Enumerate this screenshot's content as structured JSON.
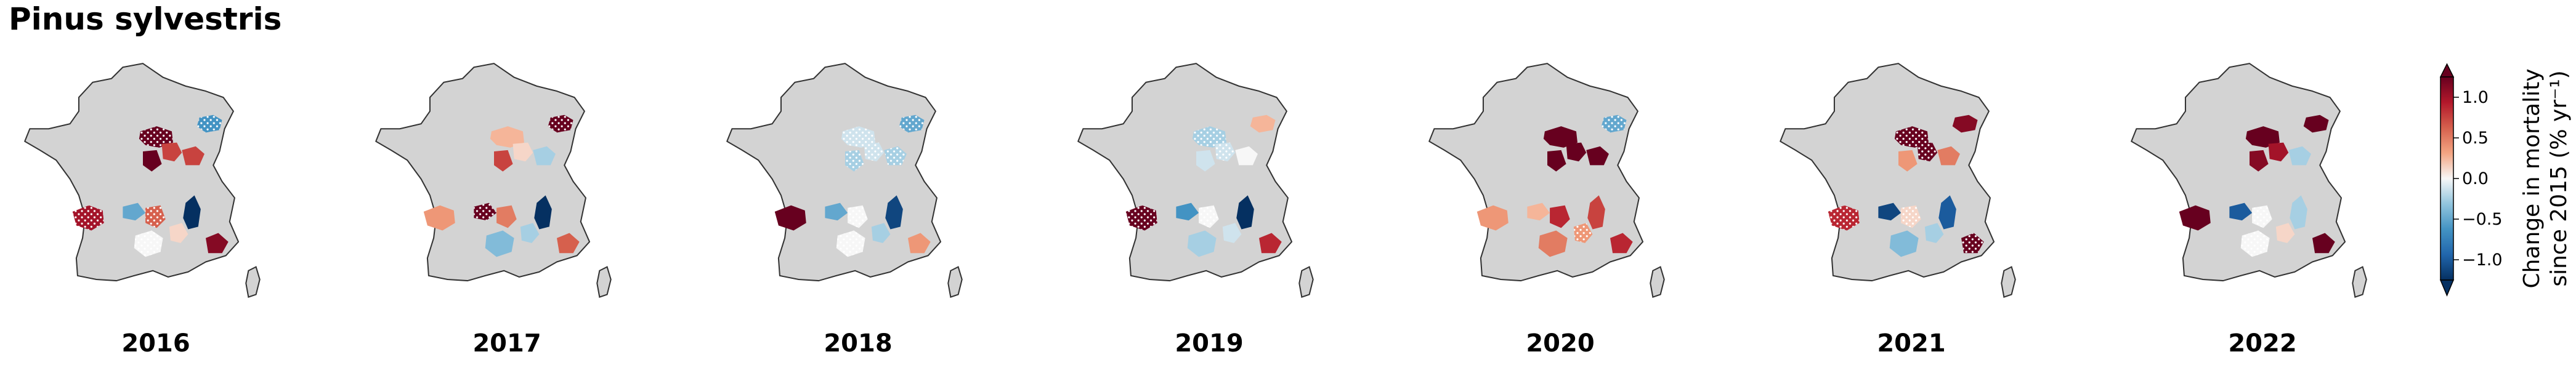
{
  "title": "Pinus sylvestris",
  "panels": [
    {
      "year": "2016",
      "regions": [
        {
          "id": "north-east",
          "value": -0.5,
          "hatched": true
        },
        {
          "id": "centre-north",
          "value": 1.3,
          "hatched": true
        },
        {
          "id": "centre-spot",
          "value": 1.4,
          "hatched": false
        },
        {
          "id": "centre",
          "value": 0.6,
          "hatched": false
        },
        {
          "id": "centre-east",
          "value": 0.6,
          "hatched": false
        },
        {
          "id": "south-west",
          "value": 0.8,
          "hatched": true
        },
        {
          "id": "massif-central",
          "value": -0.4,
          "hatched": false
        },
        {
          "id": "massif-south",
          "value": 0.5,
          "hatched": true
        },
        {
          "id": "south-centre",
          "value": 0.0,
          "hatched": true
        },
        {
          "id": "alps",
          "value": -1.3,
          "hatched": false
        },
        {
          "id": "south-east",
          "value": 0.9,
          "hatched": false
        },
        {
          "id": "pyrenees-east",
          "value": 0.1,
          "hatched": false
        }
      ]
    },
    {
      "year": "2017",
      "regions": [
        {
          "id": "north-east",
          "value": 1.4,
          "hatched": true
        },
        {
          "id": "centre-north",
          "value": 0.2,
          "hatched": false
        },
        {
          "id": "centre-spot",
          "value": 0.6,
          "hatched": false
        },
        {
          "id": "centre",
          "value": 0.1,
          "hatched": false
        },
        {
          "id": "centre-east",
          "value": -0.2,
          "hatched": false
        },
        {
          "id": "south-west",
          "value": 0.3,
          "hatched": false
        },
        {
          "id": "massif-central",
          "value": 1.2,
          "hatched": true
        },
        {
          "id": "massif-south",
          "value": 0.4,
          "hatched": false
        },
        {
          "id": "south-centre",
          "value": -0.3,
          "hatched": false
        },
        {
          "id": "alps",
          "value": -1.4,
          "hatched": false
        },
        {
          "id": "south-east",
          "value": 0.5,
          "hatched": false
        },
        {
          "id": "pyrenees-east",
          "value": -0.2,
          "hatched": false
        }
      ]
    },
    {
      "year": "2018",
      "regions": [
        {
          "id": "north-east",
          "value": -0.4,
          "hatched": true
        },
        {
          "id": "centre-north",
          "value": -0.1,
          "hatched": true
        },
        {
          "id": "centre-spot",
          "value": -0.2,
          "hatched": true
        },
        {
          "id": "centre",
          "value": -0.1,
          "hatched": true
        },
        {
          "id": "centre-east",
          "value": -0.2,
          "hatched": true
        },
        {
          "id": "south-west",
          "value": 1.3,
          "hatched": false
        },
        {
          "id": "massif-central",
          "value": -0.4,
          "hatched": false
        },
        {
          "id": "massif-south",
          "value": 0.0,
          "hatched": true
        },
        {
          "id": "south-centre",
          "value": 0.0,
          "hatched": true
        },
        {
          "id": "alps",
          "value": -0.9,
          "hatched": false
        },
        {
          "id": "south-east",
          "value": 0.3,
          "hatched": false
        },
        {
          "id": "pyrenees-east",
          "value": -0.2,
          "hatched": false
        }
      ]
    },
    {
      "year": "2019",
      "regions": [
        {
          "id": "north-east",
          "value": 0.2,
          "hatched": false
        },
        {
          "id": "centre-north",
          "value": -0.2,
          "hatched": true
        },
        {
          "id": "centre-spot",
          "value": -0.1,
          "hatched": false
        },
        {
          "id": "centre",
          "value": -0.1,
          "hatched": true
        },
        {
          "id": "centre-east",
          "value": 0.0,
          "hatched": false
        },
        {
          "id": "south-west",
          "value": 1.4,
          "hatched": true
        },
        {
          "id": "massif-central",
          "value": -0.5,
          "hatched": false
        },
        {
          "id": "massif-south",
          "value": 0.0,
          "hatched": true
        },
        {
          "id": "south-centre",
          "value": -0.2,
          "hatched": false
        },
        {
          "id": "alps",
          "value": -1.0,
          "hatched": false
        },
        {
          "id": "south-east",
          "value": 0.7,
          "hatched": false
        },
        {
          "id": "pyrenees-east",
          "value": -0.1,
          "hatched": false
        }
      ]
    },
    {
      "year": "2020",
      "regions": [
        {
          "id": "north-east",
          "value": -0.4,
          "hatched": true
        },
        {
          "id": "centre-north",
          "value": 1.5,
          "hatched": false
        },
        {
          "id": "centre-spot",
          "value": 1.5,
          "hatched": false
        },
        {
          "id": "centre",
          "value": 1.4,
          "hatched": false
        },
        {
          "id": "centre-east",
          "value": 1.3,
          "hatched": false
        },
        {
          "id": "south-west",
          "value": 0.3,
          "hatched": false
        },
        {
          "id": "massif-central",
          "value": 0.2,
          "hatched": false
        },
        {
          "id": "massif-south",
          "value": 0.7,
          "hatched": false
        },
        {
          "id": "south-centre",
          "value": 0.4,
          "hatched": false
        },
        {
          "id": "alps",
          "value": 0.6,
          "hatched": false
        },
        {
          "id": "south-east",
          "value": 0.7,
          "hatched": false
        },
        {
          "id": "pyrenees-east",
          "value": 0.3,
          "hatched": true
        }
      ]
    },
    {
      "year": "2021",
      "regions": [
        {
          "id": "north-east",
          "value": 0.9,
          "hatched": false
        },
        {
          "id": "centre-north",
          "value": 1.2,
          "hatched": true
        },
        {
          "id": "centre-spot",
          "value": 0.3,
          "hatched": false
        },
        {
          "id": "centre",
          "value": 1.3,
          "hatched": true
        },
        {
          "id": "centre-east",
          "value": 0.4,
          "hatched": false
        },
        {
          "id": "south-west",
          "value": 0.7,
          "hatched": true
        },
        {
          "id": "massif-central",
          "value": -0.9,
          "hatched": false
        },
        {
          "id": "massif-south",
          "value": 0.1,
          "hatched": true
        },
        {
          "id": "south-centre",
          "value": -0.3,
          "hatched": false
        },
        {
          "id": "alps",
          "value": -0.8,
          "hatched": false
        },
        {
          "id": "south-east",
          "value": 1.4,
          "hatched": true
        },
        {
          "id": "pyrenees-east",
          "value": -0.2,
          "hatched": false
        }
      ]
    },
    {
      "year": "2022",
      "regions": [
        {
          "id": "north-east",
          "value": 1.4,
          "hatched": false
        },
        {
          "id": "centre-north",
          "value": 1.4,
          "hatched": false
        },
        {
          "id": "centre-spot",
          "value": 0.9,
          "hatched": false
        },
        {
          "id": "centre",
          "value": 0.8,
          "hatched": false
        },
        {
          "id": "centre-east",
          "value": -0.2,
          "hatched": false
        },
        {
          "id": "south-west",
          "value": 1.5,
          "hatched": false
        },
        {
          "id": "massif-central",
          "value": -0.8,
          "hatched": false
        },
        {
          "id": "massif-south",
          "value": 0.0,
          "hatched": true
        },
        {
          "id": "south-centre",
          "value": 0.0,
          "hatched": true
        },
        {
          "id": "alps",
          "value": -0.2,
          "hatched": false
        },
        {
          "id": "south-east",
          "value": 1.4,
          "hatched": false
        },
        {
          "id": "pyrenees-east",
          "value": 0.1,
          "hatched": false
        }
      ]
    }
  ],
  "colorbar": {
    "label_line1": "Change in mortality",
    "label_line2": "since 2015 (% yr⁻¹)",
    "ticks": [
      "−1.0",
      "−0.5",
      "0.0",
      "0.5",
      "1.0"
    ],
    "tick_values": [
      -1.0,
      -0.5,
      0.0,
      0.5,
      1.0
    ],
    "vmin": -1.25,
    "vmax": 1.25,
    "extend": "both",
    "colormap": "RdBu_r",
    "colors": {
      "-1.0": "#053061",
      "-0.75": "#2166ac",
      "-0.5": "#4393c3",
      "-0.25": "#92c5de",
      "0.0": "#f7f7f7",
      "0.25": "#f4a582",
      "0.5": "#d6604d",
      "0.75": "#b2182b",
      "1.0": "#67001f"
    }
  },
  "map_fill_color": "#d3d3d3",
  "no_data_color": "#d3d3d3"
}
